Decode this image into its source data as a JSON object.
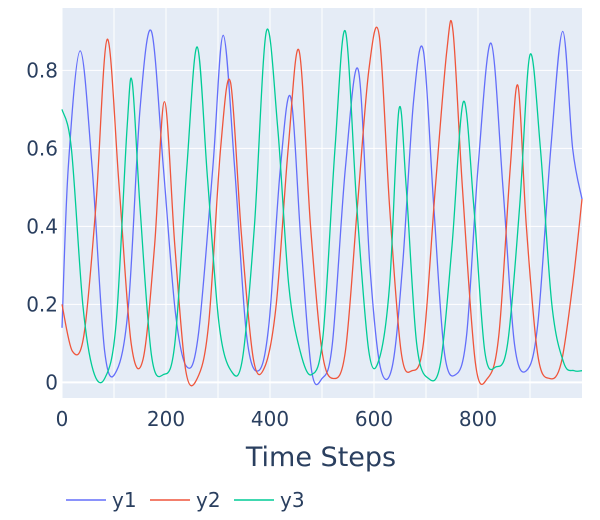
{
  "chart_data": {
    "type": "line",
    "title": "",
    "xlabel": "Time Steps",
    "ylabel": "",
    "xlim": [
      0,
      1000
    ],
    "ylim": [
      -0.04,
      0.96
    ],
    "x_ticks": [
      0,
      200,
      400,
      600,
      800
    ],
    "x_tick_labels": [
      "0",
      "200",
      "400",
      "600",
      "800"
    ],
    "y_ticks": [
      0,
      0.2,
      0.4,
      0.6,
      0.8
    ],
    "y_tick_labels": [
      "0",
      "0.2",
      "0.4",
      "0.6",
      "0.8"
    ],
    "grid": true,
    "legend_position": "bottom-left",
    "background_color": "#e5ecf6",
    "grid_color": "#ffffff",
    "text_color": "#2a3f5f",
    "series": [
      {
        "name": "y1",
        "color": "#636efa",
        "points": [
          [
            0,
            0.14
          ],
          [
            12,
            0.55
          ],
          [
            35,
            0.85
          ],
          [
            58,
            0.55
          ],
          [
            82,
            0.08
          ],
          [
            105,
            0.03
          ],
          [
            128,
            0.2
          ],
          [
            150,
            0.7
          ],
          [
            172,
            0.9
          ],
          [
            195,
            0.55
          ],
          [
            218,
            0.18
          ],
          [
            240,
            0.04
          ],
          [
            262,
            0.12
          ],
          [
            290,
            0.55
          ],
          [
            310,
            0.89
          ],
          [
            332,
            0.55
          ],
          [
            355,
            0.12
          ],
          [
            378,
            0.03
          ],
          [
            398,
            0.15
          ],
          [
            420,
            0.55
          ],
          [
            440,
            0.73
          ],
          [
            460,
            0.35
          ],
          [
            480,
            0.03
          ],
          [
            500,
            0.01
          ],
          [
            520,
            0.1
          ],
          [
            545,
            0.55
          ],
          [
            570,
            0.8
          ],
          [
            592,
            0.3
          ],
          [
            612,
            0.04
          ],
          [
            635,
            0.04
          ],
          [
            655,
            0.3
          ],
          [
            676,
            0.72
          ],
          [
            695,
            0.85
          ],
          [
            715,
            0.45
          ],
          [
            735,
            0.08
          ],
          [
            757,
            0.02
          ],
          [
            778,
            0.12
          ],
          [
            800,
            0.55
          ],
          [
            825,
            0.87
          ],
          [
            848,
            0.5
          ],
          [
            870,
            0.1
          ],
          [
            893,
            0.03
          ],
          [
            915,
            0.15
          ],
          [
            940,
            0.6
          ],
          [
            963,
            0.9
          ],
          [
            982,
            0.6
          ],
          [
            1000,
            0.47
          ]
        ]
      },
      {
        "name": "y2",
        "color": "#ef553b",
        "points": [
          [
            0,
            0.2
          ],
          [
            20,
            0.08
          ],
          [
            42,
            0.12
          ],
          [
            65,
            0.45
          ],
          [
            87,
            0.88
          ],
          [
            110,
            0.5
          ],
          [
            133,
            0.1
          ],
          [
            156,
            0.06
          ],
          [
            178,
            0.35
          ],
          [
            197,
            0.72
          ],
          [
            217,
            0.35
          ],
          [
            238,
            0.03
          ],
          [
            260,
            0.01
          ],
          [
            282,
            0.15
          ],
          [
            305,
            0.6
          ],
          [
            324,
            0.77
          ],
          [
            345,
            0.38
          ],
          [
            368,
            0.06
          ],
          [
            390,
            0.04
          ],
          [
            412,
            0.2
          ],
          [
            435,
            0.6
          ],
          [
            456,
            0.85
          ],
          [
            478,
            0.4
          ],
          [
            500,
            0.08
          ],
          [
            522,
            0.01
          ],
          [
            545,
            0.08
          ],
          [
            568,
            0.45
          ],
          [
            590,
            0.8
          ],
          [
            610,
            0.89
          ],
          [
            630,
            0.45
          ],
          [
            652,
            0.08
          ],
          [
            673,
            0.03
          ],
          [
            695,
            0.1
          ],
          [
            718,
            0.5
          ],
          [
            740,
            0.85
          ],
          [
            752,
            0.9
          ],
          [
            770,
            0.5
          ],
          [
            795,
            0.05
          ],
          [
            818,
            0.01
          ],
          [
            840,
            0.12
          ],
          [
            862,
            0.55
          ],
          [
            877,
            0.76
          ],
          [
            893,
            0.4
          ],
          [
            915,
            0.07
          ],
          [
            938,
            0.01
          ],
          [
            960,
            0.05
          ],
          [
            982,
            0.25
          ],
          [
            1000,
            0.47
          ]
        ]
      },
      {
        "name": "y3",
        "color": "#00cc96",
        "points": [
          [
            0,
            0.7
          ],
          [
            18,
            0.6
          ],
          [
            40,
            0.2
          ],
          [
            60,
            0.03
          ],
          [
            82,
            0.01
          ],
          [
            104,
            0.15
          ],
          [
            125,
            0.65
          ],
          [
            135,
            0.77
          ],
          [
            150,
            0.45
          ],
          [
            172,
            0.07
          ],
          [
            195,
            0.02
          ],
          [
            217,
            0.1
          ],
          [
            240,
            0.55
          ],
          [
            260,
            0.86
          ],
          [
            280,
            0.52
          ],
          [
            302,
            0.15
          ],
          [
            325,
            0.03
          ],
          [
            347,
            0.06
          ],
          [
            370,
            0.4
          ],
          [
            393,
            0.9
          ],
          [
            415,
            0.65
          ],
          [
            436,
            0.25
          ],
          [
            458,
            0.08
          ],
          [
            480,
            0.02
          ],
          [
            502,
            0.12
          ],
          [
            525,
            0.6
          ],
          [
            545,
            0.9
          ],
          [
            567,
            0.45
          ],
          [
            590,
            0.08
          ],
          [
            610,
            0.06
          ],
          [
            630,
            0.25
          ],
          [
            648,
            0.7
          ],
          [
            662,
            0.5
          ],
          [
            682,
            0.1
          ],
          [
            705,
            0.01
          ],
          [
            728,
            0.05
          ],
          [
            750,
            0.35
          ],
          [
            772,
            0.72
          ],
          [
            792,
            0.45
          ],
          [
            813,
            0.08
          ],
          [
            835,
            0.04
          ],
          [
            857,
            0.1
          ],
          [
            880,
            0.45
          ],
          [
            900,
            0.84
          ],
          [
            920,
            0.6
          ],
          [
            942,
            0.2
          ],
          [
            965,
            0.05
          ],
          [
            985,
            0.03
          ],
          [
            1000,
            0.03
          ]
        ]
      }
    ]
  }
}
